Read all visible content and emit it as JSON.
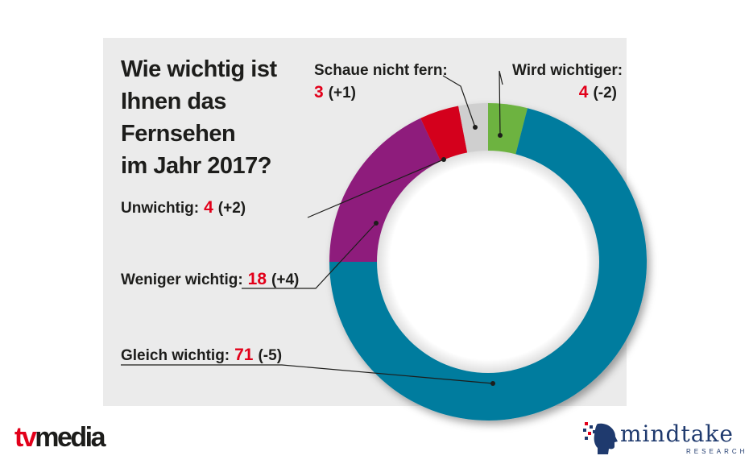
{
  "title": "Wie wichtig ist Ihnen das Fernsehen im Jahr 2017?",
  "title_lines": [
    "Wie wichtig ist",
    "Ihnen das",
    "Fernsehen",
    "im Jahr 2017?"
  ],
  "chart_data": {
    "type": "pie",
    "style": "donut",
    "title": "Wie wichtig ist Ihnen das Fernsehen im Jahr 2017?",
    "categories": [
      "Wird wichtiger",
      "Gleich wichtig",
      "Weniger wichtig",
      "Unwichtig",
      "Schaue nicht fern"
    ],
    "values": [
      4,
      71,
      18,
      4,
      3
    ],
    "changes": [
      "(-2)",
      "(-5)",
      "(+4)",
      "(+2)",
      "(+1)"
    ],
    "colors": [
      "#6db33f",
      "#007b9e",
      "#8e1c7b",
      "#d4001a",
      "#cfcfcf"
    ]
  },
  "labels": {
    "wird_wichtiger": {
      "name": "Wird wichtiger:",
      "value": "4",
      "delta": "(-2)"
    },
    "schaue_nicht_fern": {
      "name": "Schaue nicht fern:",
      "value": "3",
      "delta": "(+1)"
    },
    "unwichtig": {
      "name": "Unwichtig:",
      "value": "4",
      "delta": "(+2)"
    },
    "weniger_wichtig": {
      "name": "Weniger wichtig:",
      "value": "18",
      "delta": "(+4)"
    },
    "gleich_wichtig": {
      "name": "Gleich wichtig:",
      "value": "71",
      "delta": "(-5)"
    }
  },
  "logos": {
    "tvmedia": {
      "part1": "tv",
      "part2": "media"
    },
    "mindtake": {
      "word": "mindtake",
      "sub": "RESEARCH"
    }
  }
}
